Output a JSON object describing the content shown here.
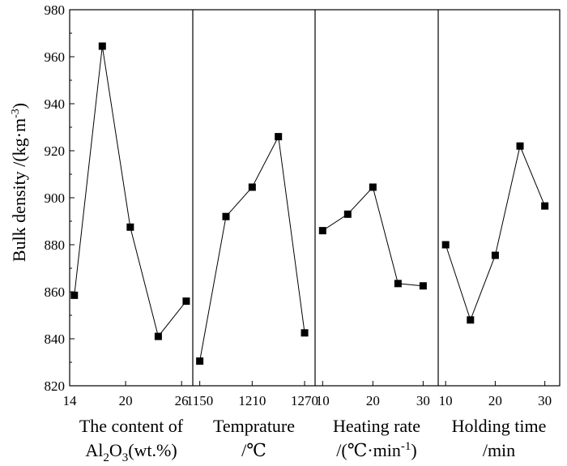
{
  "chart_data": {
    "type": "line",
    "ylabel": "Bulk density /(kg·m",
    "ylabel_sup": "-3",
    "ylabel_close": ")",
    "ylim": [
      820,
      980
    ],
    "yticks": [
      "820",
      "840",
      "860",
      "880",
      "900",
      "920",
      "940",
      "960",
      "980"
    ],
    "panels": [
      {
        "name": "alumina-content",
        "xlabel_line1": "The content of",
        "xlabel_line2_parts": [
          "Al",
          "2",
          "O",
          "3",
          "(wt.%)"
        ],
        "xlim": [
          14,
          27.2
        ],
        "xticks": [
          "14",
          "20",
          "26"
        ],
        "x": [
          14.5,
          17.5,
          20.5,
          23.5,
          26.5
        ],
        "y": [
          858.5,
          964.5,
          887.5,
          841,
          856
        ]
      },
      {
        "name": "temperature",
        "xlabel_line1": "Temprature",
        "xlabel_line2": "/℃",
        "xlim": [
          1142,
          1282
        ],
        "xticks": [
          "1150",
          "1210",
          "1270"
        ],
        "x": [
          1150,
          1180,
          1210,
          1240,
          1270
        ],
        "y": [
          830.5,
          892,
          904.5,
          926,
          842.5
        ]
      },
      {
        "name": "heating-rate",
        "xlabel_line1": "Heating rate",
        "xlabel_line2_parts": [
          "/(℃·min",
          "-1",
          ")"
        ],
        "xlim": [
          8.5,
          33
        ],
        "xticks": [
          "10",
          "20",
          "30"
        ],
        "x": [
          10,
          15,
          20,
          25,
          30
        ],
        "y": [
          886,
          893,
          904.5,
          863.5,
          862.5
        ]
      },
      {
        "name": "holding-time",
        "xlabel_line1": "Holding time",
        "xlabel_line2": "/min",
        "xlim": [
          8.5,
          33
        ],
        "xticks": [
          "10",
          "20",
          "30"
        ],
        "x": [
          10,
          15,
          20,
          25,
          30
        ],
        "y": [
          880,
          848,
          875.5,
          922,
          896.5
        ]
      }
    ]
  }
}
